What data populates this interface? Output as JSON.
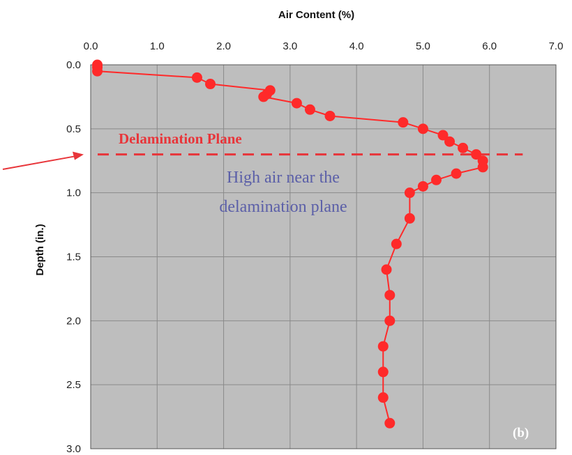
{
  "chart_data": {
    "type": "line",
    "title": "",
    "xlabel": "Air Content (%)",
    "ylabel": "Depth (in.)",
    "xlim": [
      0,
      7
    ],
    "ylim": [
      0,
      3
    ],
    "y_inverted": true,
    "x_axis_position": "top",
    "x_ticks": [
      "0.0",
      "1.0",
      "2.0",
      "3.0",
      "4.0",
      "5.0",
      "6.0",
      "7.0"
    ],
    "y_ticks": [
      "0.0",
      "0.5",
      "1.0",
      "1.5",
      "2.0",
      "2.5",
      "3.0"
    ],
    "grid": true,
    "plot_background": "#bebebe",
    "series": [
      {
        "color": "#ff2a2a",
        "marker": "circle",
        "points": [
          {
            "x": 0.1,
            "y": 0.0
          },
          {
            "x": 0.1,
            "y": 0.02
          },
          {
            "x": 0.1,
            "y": 0.05
          },
          {
            "x": 1.6,
            "y": 0.1
          },
          {
            "x": 1.8,
            "y": 0.15
          },
          {
            "x": 2.7,
            "y": 0.2
          },
          {
            "x": 2.65,
            "y": 0.23
          },
          {
            "x": 2.6,
            "y": 0.25
          },
          {
            "x": 3.1,
            "y": 0.3
          },
          {
            "x": 3.3,
            "y": 0.35
          },
          {
            "x": 3.6,
            "y": 0.4
          },
          {
            "x": 4.7,
            "y": 0.45
          },
          {
            "x": 5.0,
            "y": 0.5
          },
          {
            "x": 5.3,
            "y": 0.55
          },
          {
            "x": 5.4,
            "y": 0.6
          },
          {
            "x": 5.6,
            "y": 0.65
          },
          {
            "x": 5.8,
            "y": 0.7
          },
          {
            "x": 5.9,
            "y": 0.75
          },
          {
            "x": 5.9,
            "y": 0.8
          },
          {
            "x": 5.5,
            "y": 0.85
          },
          {
            "x": 5.2,
            "y": 0.9
          },
          {
            "x": 5.0,
            "y": 0.95
          },
          {
            "x": 4.8,
            "y": 1.0
          },
          {
            "x": 4.8,
            "y": 1.2
          },
          {
            "x": 4.6,
            "y": 1.4
          },
          {
            "x": 4.45,
            "y": 1.6
          },
          {
            "x": 4.5,
            "y": 1.8
          },
          {
            "x": 4.5,
            "y": 2.0
          },
          {
            "x": 4.4,
            "y": 2.2
          },
          {
            "x": 4.4,
            "y": 2.4
          },
          {
            "x": 4.4,
            "y": 2.6
          },
          {
            "x": 4.5,
            "y": 2.8
          }
        ]
      }
    ],
    "annotations": {
      "delamination_plane_label": "Delamination Plane",
      "delamination_plane_depth": 0.7,
      "delamination_plane_x_range": [
        0,
        6.5
      ],
      "delamination_color": "#e8353a",
      "high_air_line1": "High air near the",
      "high_air_line2": "delamination plane",
      "high_air_color": "#5b5fa8",
      "panel_label": "(b)"
    }
  }
}
